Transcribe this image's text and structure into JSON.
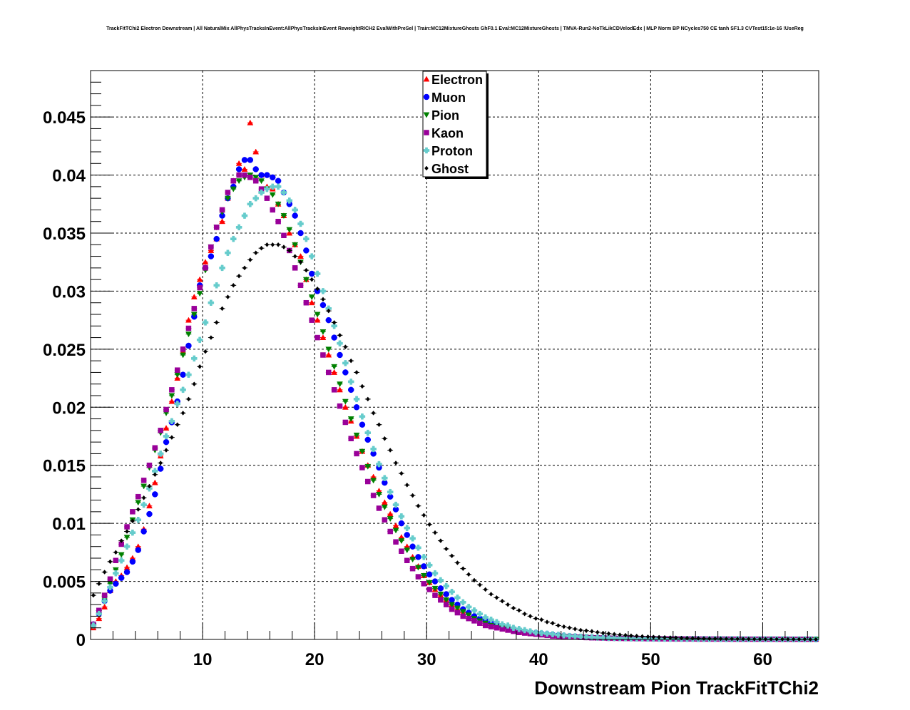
{
  "chart_data": {
    "type": "scatter",
    "title": "TrackFitTChi2 Electron Downstream | All NaturalMix AllPhysTracksInEvent:AllPhysTracksInEvent ReweightRICH2 EvalWithPreSel | Train:MC12MixtureGhosts GhF0.1 Eval:MC12MixtureGhosts | TMVA-Run2-NoTkLikCDVelodEdx | MLP Norm BP NCycles750 CE tanh SF1.3 CVTest15:1e-16 !UseReg",
    "xlabel": "Downstream Pion TrackFitTChi2",
    "ylabel": "",
    "xlim": [
      0,
      65
    ],
    "ylim": [
      0,
      0.049
    ],
    "x_ticks": [
      "10",
      "20",
      "30",
      "40",
      "50",
      "60"
    ],
    "y_ticks": [
      "0",
      "0.005",
      "0.01",
      "0.015",
      "0.02",
      "0.025",
      "0.03",
      "0.035",
      "0.04",
      "0.045"
    ],
    "grid": true,
    "legend_position": "top-center",
    "x": [
      0.25,
      0.75,
      1.25,
      1.75,
      2.25,
      2.75,
      3.25,
      3.75,
      4.25,
      4.75,
      5.25,
      5.75,
      6.25,
      6.75,
      7.25,
      7.75,
      8.25,
      8.75,
      9.25,
      9.75,
      10.25,
      10.75,
      11.25,
      11.75,
      12.25,
      12.75,
      13.25,
      13.75,
      14.25,
      14.75,
      15.25,
      15.75,
      16.25,
      16.75,
      17.25,
      17.75,
      18.25,
      18.75,
      19.25,
      19.75,
      20.25,
      20.75,
      21.25,
      21.75,
      22.25,
      22.75,
      23.25,
      23.75,
      24.25,
      24.75,
      25.25,
      25.75,
      26.25,
      26.75,
      27.25,
      27.75,
      28.25,
      28.75,
      29.25,
      29.75,
      30.25,
      30.75,
      31.25,
      31.75,
      32.25,
      32.75,
      33.25,
      33.75,
      34.25,
      34.75,
      35.25,
      35.75,
      36.25,
      36.75,
      37.25,
      37.75,
      38.25,
      38.75,
      39.25,
      39.75,
      40.25,
      40.75,
      41.25,
      41.75,
      42.25,
      42.75,
      43.25,
      43.75,
      44.25,
      44.75,
      45.25,
      45.75,
      46.25,
      46.75,
      47.25,
      47.75,
      48.25,
      48.75,
      49.25,
      49.75,
      50.25,
      50.75,
      51.25,
      51.75,
      52.25,
      52.75,
      53.25,
      53.75,
      54.25,
      54.75,
      55.25,
      55.75,
      56.25,
      56.75,
      57.25,
      57.75,
      58.25,
      58.75,
      59.25,
      59.75,
      60.25,
      60.75,
      61.25,
      61.75,
      62.25,
      62.75,
      63.25,
      63.75,
      64.25,
      64.75
    ],
    "series": [
      {
        "name": "Electron",
        "color": "#ff0000",
        "marker": "triangle-up",
        "values": [
          0.001,
          0.0018,
          0.0028,
          0.0042,
          0.005,
          0.0055,
          0.0062,
          0.007,
          0.008,
          0.0095,
          0.0115,
          0.0135,
          0.0158,
          0.0182,
          0.0205,
          0.0225,
          0.0248,
          0.0275,
          0.0295,
          0.031,
          0.0325,
          0.0335,
          0.0345,
          0.036,
          0.038,
          0.0395,
          0.041,
          0.0405,
          0.0445,
          0.042,
          0.04,
          0.039,
          0.0388,
          0.0375,
          0.0365,
          0.035,
          0.034,
          0.033,
          0.031,
          0.029,
          0.0275,
          0.026,
          0.0245,
          0.023,
          0.0215,
          0.02,
          0.0188,
          0.0175,
          0.0162,
          0.015,
          0.014,
          0.0128,
          0.0118,
          0.0108,
          0.0098,
          0.0088,
          0.008,
          0.0071,
          0.0063,
          0.0055,
          0.0049,
          0.0043,
          0.0038,
          0.0034,
          0.003,
          0.0026,
          0.0023,
          0.002,
          0.0018,
          0.0016,
          0.0014,
          0.0012,
          0.0011,
          0.001,
          0.0009,
          0.0008,
          0.0007,
          0.0006,
          0.00055,
          0.0005,
          0.00045,
          0.0004,
          0.00035,
          0.0003,
          0.00028,
          0.00025,
          0.00022,
          0.0002,
          0.00018,
          0.00016,
          0.00014,
          0.00013,
          0.00012,
          0.0001,
          0.0001,
          9e-05,
          8e-05,
          8e-05,
          7e-05,
          7e-05,
          6e-05,
          6e-05,
          5e-05,
          5e-05,
          5e-05,
          4e-05,
          4e-05,
          4e-05,
          4e-05,
          3e-05,
          3e-05,
          3e-05,
          3e-05,
          3e-05,
          3e-05,
          2e-05,
          2e-05,
          2e-05,
          2e-05,
          2e-05,
          2e-05,
          2e-05,
          2e-05,
          2e-05,
          1e-05,
          1e-05,
          1e-05,
          1e-05,
          1e-05,
          1e-05
        ]
      },
      {
        "name": "Muon",
        "color": "#0000ff",
        "marker": "circle",
        "values": [
          0.0013,
          0.0022,
          0.0033,
          0.0042,
          0.0048,
          0.0053,
          0.0058,
          0.0067,
          0.0077,
          0.0093,
          0.0108,
          0.0125,
          0.0147,
          0.017,
          0.0187,
          0.0205,
          0.0228,
          0.0253,
          0.0278,
          0.0305,
          0.032,
          0.033,
          0.0345,
          0.0365,
          0.038,
          0.039,
          0.0405,
          0.0413,
          0.0413,
          0.0405,
          0.04,
          0.04,
          0.0398,
          0.0395,
          0.0385,
          0.0375,
          0.0365,
          0.035,
          0.0335,
          0.0315,
          0.03,
          0.0288,
          0.0275,
          0.026,
          0.0245,
          0.023,
          0.0215,
          0.02,
          0.0185,
          0.0172,
          0.016,
          0.0148,
          0.0135,
          0.0123,
          0.0112,
          0.01,
          0.009,
          0.008,
          0.0071,
          0.0063,
          0.0056,
          0.005,
          0.0044,
          0.0039,
          0.0034,
          0.003,
          0.0026,
          0.0023,
          0.002,
          0.0018,
          0.0016,
          0.0014,
          0.0013,
          0.0011,
          0.001,
          0.0009,
          0.0008,
          0.0007,
          0.0006,
          0.00055,
          0.0005,
          0.00045,
          0.0004,
          0.00035,
          0.0003,
          0.00028,
          0.00025,
          0.00022,
          0.0002,
          0.00018,
          0.00016,
          0.00015,
          0.00013,
          0.00012,
          0.00011,
          0.0001,
          9e-05,
          8e-05,
          8e-05,
          7e-05,
          7e-05,
          6e-05,
          6e-05,
          5e-05,
          5e-05,
          5e-05,
          4e-05,
          4e-05,
          4e-05,
          4e-05,
          3e-05,
          3e-05,
          3e-05,
          3e-05,
          3e-05,
          3e-05,
          2e-05,
          2e-05,
          2e-05,
          2e-05,
          2e-05,
          2e-05,
          2e-05,
          2e-05,
          2e-05,
          1e-05,
          1e-05,
          1e-05,
          1e-05,
          1e-05
        ]
      },
      {
        "name": "Pion",
        "color": "#008000",
        "marker": "triangle-down",
        "values": [
          0.0012,
          0.0023,
          0.0035,
          0.0048,
          0.006,
          0.0073,
          0.0088,
          0.0103,
          0.0118,
          0.0132,
          0.0148,
          0.0163,
          0.0178,
          0.0195,
          0.021,
          0.0228,
          0.0245,
          0.0263,
          0.028,
          0.0298,
          0.0318,
          0.0338,
          0.0355,
          0.0368,
          0.038,
          0.0388,
          0.0395,
          0.0398,
          0.04,
          0.0398,
          0.0395,
          0.0388,
          0.0383,
          0.0375,
          0.0365,
          0.0353,
          0.034,
          0.0325,
          0.031,
          0.0295,
          0.028,
          0.0265,
          0.025,
          0.0235,
          0.022,
          0.0205,
          0.019,
          0.0176,
          0.0162,
          0.0149,
          0.0137,
          0.0125,
          0.0114,
          0.0104,
          0.0094,
          0.0085,
          0.0077,
          0.0069,
          0.0062,
          0.0055,
          0.0049,
          0.0044,
          0.0039,
          0.0034,
          0.003,
          0.0027,
          0.0024,
          0.0021,
          0.0018,
          0.0016,
          0.0014,
          0.0012,
          0.0011,
          0.001,
          0.0009,
          0.0008,
          0.0007,
          0.0006,
          0.00055,
          0.0005,
          0.00045,
          0.0004,
          0.00035,
          0.0003,
          0.00028,
          0.00025,
          0.00022,
          0.0002,
          0.00018,
          0.00016,
          0.00014,
          0.00013,
          0.00012,
          0.0001,
          0.0001,
          9e-05,
          8e-05,
          8e-05,
          7e-05,
          7e-05,
          6e-05,
          6e-05,
          5e-05,
          5e-05,
          5e-05,
          4e-05,
          4e-05,
          4e-05,
          4e-05,
          3e-05,
          3e-05,
          3e-05,
          3e-05,
          3e-05,
          3e-05,
          2e-05,
          2e-05,
          2e-05,
          2e-05,
          2e-05,
          2e-05,
          2e-05,
          2e-05,
          2e-05,
          1e-05,
          1e-05,
          1e-05,
          1e-05,
          1e-05,
          1e-05
        ]
      },
      {
        "name": "Kaon",
        "color": "#990099",
        "marker": "square",
        "values": [
          0.0013,
          0.0025,
          0.0038,
          0.0052,
          0.0068,
          0.0082,
          0.0097,
          0.011,
          0.0123,
          0.0137,
          0.015,
          0.0165,
          0.018,
          0.0198,
          0.0215,
          0.0232,
          0.025,
          0.0268,
          0.0285,
          0.0303,
          0.032,
          0.0338,
          0.0355,
          0.037,
          0.0385,
          0.0395,
          0.04,
          0.04,
          0.0398,
          0.0395,
          0.0388,
          0.038,
          0.037,
          0.036,
          0.0348,
          0.0335,
          0.032,
          0.0305,
          0.029,
          0.0275,
          0.026,
          0.0245,
          0.023,
          0.0215,
          0.0201,
          0.0187,
          0.0173,
          0.016,
          0.0148,
          0.0136,
          0.0124,
          0.0113,
          0.0103,
          0.0093,
          0.0084,
          0.0076,
          0.0068,
          0.0061,
          0.0054,
          0.0048,
          0.0043,
          0.0038,
          0.0034,
          0.003,
          0.0026,
          0.0023,
          0.002,
          0.0018,
          0.0016,
          0.0014,
          0.0012,
          0.0011,
          0.001,
          0.0009,
          0.0008,
          0.0007,
          0.0006,
          0.00055,
          0.0005,
          0.00045,
          0.0004,
          0.00035,
          0.0003,
          0.00028,
          0.00025,
          0.00022,
          0.0002,
          0.00018,
          0.00016,
          0.00014,
          0.00013,
          0.00012,
          0.0001,
          0.0001,
          9e-05,
          8e-05,
          8e-05,
          7e-05,
          7e-05,
          6e-05,
          6e-05,
          5e-05,
          5e-05,
          5e-05,
          4e-05,
          4e-05,
          4e-05,
          4e-05,
          3e-05,
          3e-05,
          3e-05,
          3e-05,
          3e-05,
          3e-05,
          2e-05,
          2e-05,
          2e-05,
          2e-05,
          2e-05,
          2e-05,
          2e-05,
          2e-05,
          2e-05,
          1e-05,
          1e-05,
          1e-05,
          1e-05,
          1e-05,
          1e-05
        ]
      },
      {
        "name": "Proton",
        "color": "#66cccc",
        "marker": "cross",
        "values": [
          0.0012,
          0.0022,
          0.0033,
          0.0045,
          0.0057,
          0.0068,
          0.008,
          0.0092,
          0.0103,
          0.0116,
          0.013,
          0.0145,
          0.016,
          0.0175,
          0.0188,
          0.0203,
          0.0215,
          0.0228,
          0.0242,
          0.0258,
          0.0273,
          0.029,
          0.0305,
          0.032,
          0.0333,
          0.0345,
          0.0355,
          0.0365,
          0.0375,
          0.038,
          0.0385,
          0.0388,
          0.039,
          0.039,
          0.0385,
          0.0378,
          0.037,
          0.0358,
          0.0345,
          0.033,
          0.0315,
          0.03,
          0.0285,
          0.027,
          0.0255,
          0.0238,
          0.0222,
          0.0207,
          0.0192,
          0.0178,
          0.0164,
          0.0151,
          0.0139,
          0.0127,
          0.0116,
          0.0106,
          0.0096,
          0.0087,
          0.0079,
          0.0071,
          0.0064,
          0.0057,
          0.0051,
          0.0046,
          0.0041,
          0.0036,
          0.0032,
          0.0028,
          0.0025,
          0.0022,
          0.0019,
          0.0017,
          0.0015,
          0.0013,
          0.0012,
          0.001,
          0.0009,
          0.0008,
          0.0007,
          0.0006,
          0.00055,
          0.0005,
          0.00045,
          0.0004,
          0.00035,
          0.0003,
          0.00027,
          0.00024,
          0.00021,
          0.00019,
          0.00017,
          0.00015,
          0.00013,
          0.00012,
          0.00011,
          0.0001,
          9e-05,
          8e-05,
          8e-05,
          7e-05,
          6e-05,
          6e-05,
          5e-05,
          5e-05,
          5e-05,
          4e-05,
          4e-05,
          4e-05,
          3e-05,
          3e-05,
          3e-05,
          3e-05,
          3e-05,
          2e-05,
          2e-05,
          2e-05,
          2e-05,
          2e-05,
          2e-05,
          2e-05,
          2e-05,
          2e-05,
          1e-05,
          1e-05,
          1e-05,
          1e-05,
          1e-05,
          1e-05,
          1e-05,
          1e-05
        ]
      },
      {
        "name": "Ghost",
        "color": "#000000",
        "marker": "diamond",
        "values": [
          0.0038,
          0.0048,
          0.0058,
          0.0067,
          0.0075,
          0.0085,
          0.0093,
          0.0102,
          0.0112,
          0.0122,
          0.0132,
          0.0142,
          0.0152,
          0.0163,
          0.0174,
          0.0185,
          0.0195,
          0.0207,
          0.022,
          0.0235,
          0.0248,
          0.026,
          0.0273,
          0.0285,
          0.0295,
          0.0305,
          0.0313,
          0.032,
          0.0327,
          0.0333,
          0.0337,
          0.034,
          0.034,
          0.034,
          0.0338,
          0.0335,
          0.033,
          0.0325,
          0.0318,
          0.031,
          0.0302,
          0.0293,
          0.0283,
          0.0273,
          0.0262,
          0.0252,
          0.024,
          0.023,
          0.0218,
          0.0207,
          0.0195,
          0.0185,
          0.0173,
          0.0163,
          0.0152,
          0.0143,
          0.0133,
          0.0124,
          0.0115,
          0.0107,
          0.0099,
          0.0092,
          0.0085,
          0.0078,
          0.0072,
          0.0066,
          0.0061,
          0.0056,
          0.0051,
          0.0047,
          0.0043,
          0.0039,
          0.0036,
          0.0033,
          0.003,
          0.0027,
          0.0025,
          0.0022,
          0.002,
          0.0018,
          0.0017,
          0.0015,
          0.0014,
          0.0012,
          0.0011,
          0.001,
          0.0009,
          0.0008,
          0.00075,
          0.0007,
          0.00062,
          0.00055,
          0.0005,
          0.00045,
          0.0004,
          0.00036,
          0.00032,
          0.00029,
          0.00026,
          0.00023,
          0.00021,
          0.00019,
          0.00017,
          0.00015,
          0.00014,
          0.00012,
          0.00011,
          0.0001,
          9e-05,
          8e-05,
          7e-05,
          7e-05,
          6e-05,
          5e-05,
          5e-05,
          4e-05,
          4e-05,
          4e-05,
          3e-05,
          3e-05,
          3e-05,
          3e-05,
          2e-05,
          2e-05,
          2e-05,
          2e-05,
          2e-05,
          2e-05,
          1e-05,
          1e-05
        ]
      }
    ]
  }
}
